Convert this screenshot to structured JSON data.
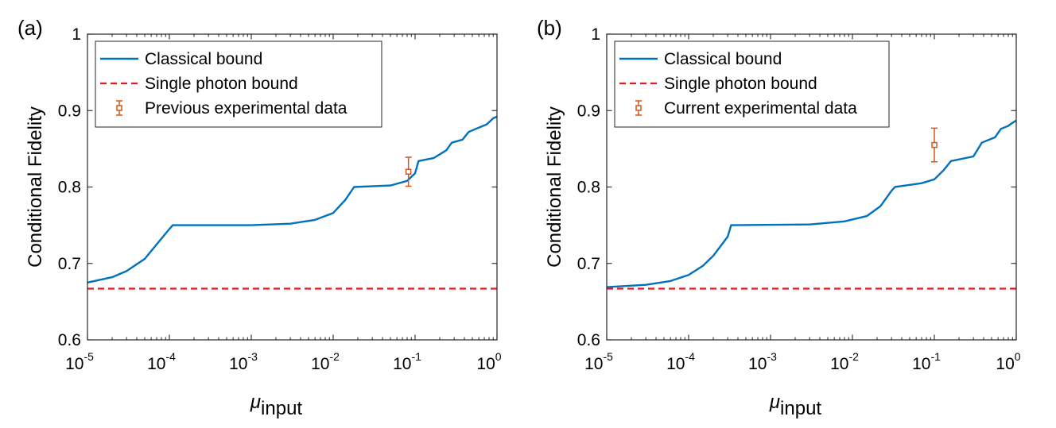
{
  "chart_data": [
    {
      "type": "line",
      "panel_label": "(a)",
      "xlabel": "μ",
      "xlabel_sub": "input",
      "ylabel": "Conditional Fidelity",
      "xscale": "log",
      "xlim": [
        1e-05,
        1
      ],
      "ylim": [
        0.6,
        1
      ],
      "xticks": [
        {
          "base": "10",
          "exp": "-5"
        },
        {
          "base": "10",
          "exp": "-4"
        },
        {
          "base": "10",
          "exp": "-3"
        },
        {
          "base": "10",
          "exp": "-2"
        },
        {
          "base": "10",
          "exp": "-1"
        },
        {
          "base": "10",
          "exp": "0"
        }
      ],
      "yticks": [
        "0.6",
        "0.7",
        "0.8",
        "0.9",
        "1"
      ],
      "legend_position": "top-left",
      "grid": false,
      "series": [
        {
          "name": "Classical bound",
          "style": "solid",
          "color": "#0072BD",
          "x": [
            1e-05,
            2e-05,
            3e-05,
            5e-05,
            7e-05,
            0.0001,
            0.00011,
            0.001,
            0.003,
            0.006,
            0.01,
            0.014,
            0.018,
            0.05,
            0.08,
            0.1,
            0.11,
            0.17,
            0.24,
            0.28,
            0.38,
            0.45,
            0.55,
            0.75,
            0.9,
            1
          ],
          "y": [
            0.675,
            0.682,
            0.69,
            0.706,
            0.725,
            0.745,
            0.75,
            0.75,
            0.752,
            0.757,
            0.766,
            0.783,
            0.8,
            0.802,
            0.808,
            0.818,
            0.834,
            0.838,
            0.848,
            0.858,
            0.862,
            0.872,
            0.876,
            0.882,
            0.89,
            0.892
          ]
        },
        {
          "name": "Single photon bound",
          "style": "dashed",
          "color": "#E8161E",
          "x": [
            1e-05,
            1
          ],
          "y": [
            0.667,
            0.667
          ]
        },
        {
          "name": "Previous experimental data",
          "style": "errorbar",
          "color": "#D95319",
          "x": [
            0.083
          ],
          "y": [
            0.82
          ],
          "err": [
            0.019
          ]
        }
      ]
    },
    {
      "type": "line",
      "panel_label": "(b)",
      "xlabel": "μ",
      "xlabel_sub": "input",
      "ylabel": "Conditional Fidelity",
      "xscale": "log",
      "xlim": [
        1e-05,
        1
      ],
      "ylim": [
        0.6,
        1
      ],
      "xticks": [
        {
          "base": "10",
          "exp": "-5"
        },
        {
          "base": "10",
          "exp": "-4"
        },
        {
          "base": "10",
          "exp": "-3"
        },
        {
          "base": "10",
          "exp": "-2"
        },
        {
          "base": "10",
          "exp": "-1"
        },
        {
          "base": "10",
          "exp": "0"
        }
      ],
      "yticks": [
        "0.6",
        "0.7",
        "0.8",
        "0.9",
        "1"
      ],
      "legend_position": "top-left",
      "grid": false,
      "series": [
        {
          "name": "Classical bound",
          "style": "solid",
          "color": "#0072BD",
          "x": [
            1e-05,
            3e-05,
            6e-05,
            0.0001,
            0.00015,
            0.0002,
            0.0003,
            0.00033,
            0.003,
            0.008,
            0.015,
            0.022,
            0.03,
            0.033,
            0.07,
            0.1,
            0.13,
            0.16,
            0.3,
            0.38,
            0.55,
            0.65,
            0.8,
            0.9,
            1
          ],
          "y": [
            0.669,
            0.672,
            0.677,
            0.685,
            0.697,
            0.71,
            0.735,
            0.75,
            0.751,
            0.755,
            0.762,
            0.775,
            0.795,
            0.8,
            0.805,
            0.81,
            0.822,
            0.834,
            0.84,
            0.858,
            0.865,
            0.876,
            0.88,
            0.884,
            0.887
          ]
        },
        {
          "name": "Single photon bound",
          "style": "dashed",
          "color": "#E8161E",
          "x": [
            1e-05,
            1
          ],
          "y": [
            0.667,
            0.667
          ]
        },
        {
          "name": "Current experimental data",
          "style": "errorbar",
          "color": "#D95319",
          "x": [
            0.1
          ],
          "y": [
            0.855
          ],
          "err": [
            0.022
          ]
        }
      ]
    }
  ]
}
